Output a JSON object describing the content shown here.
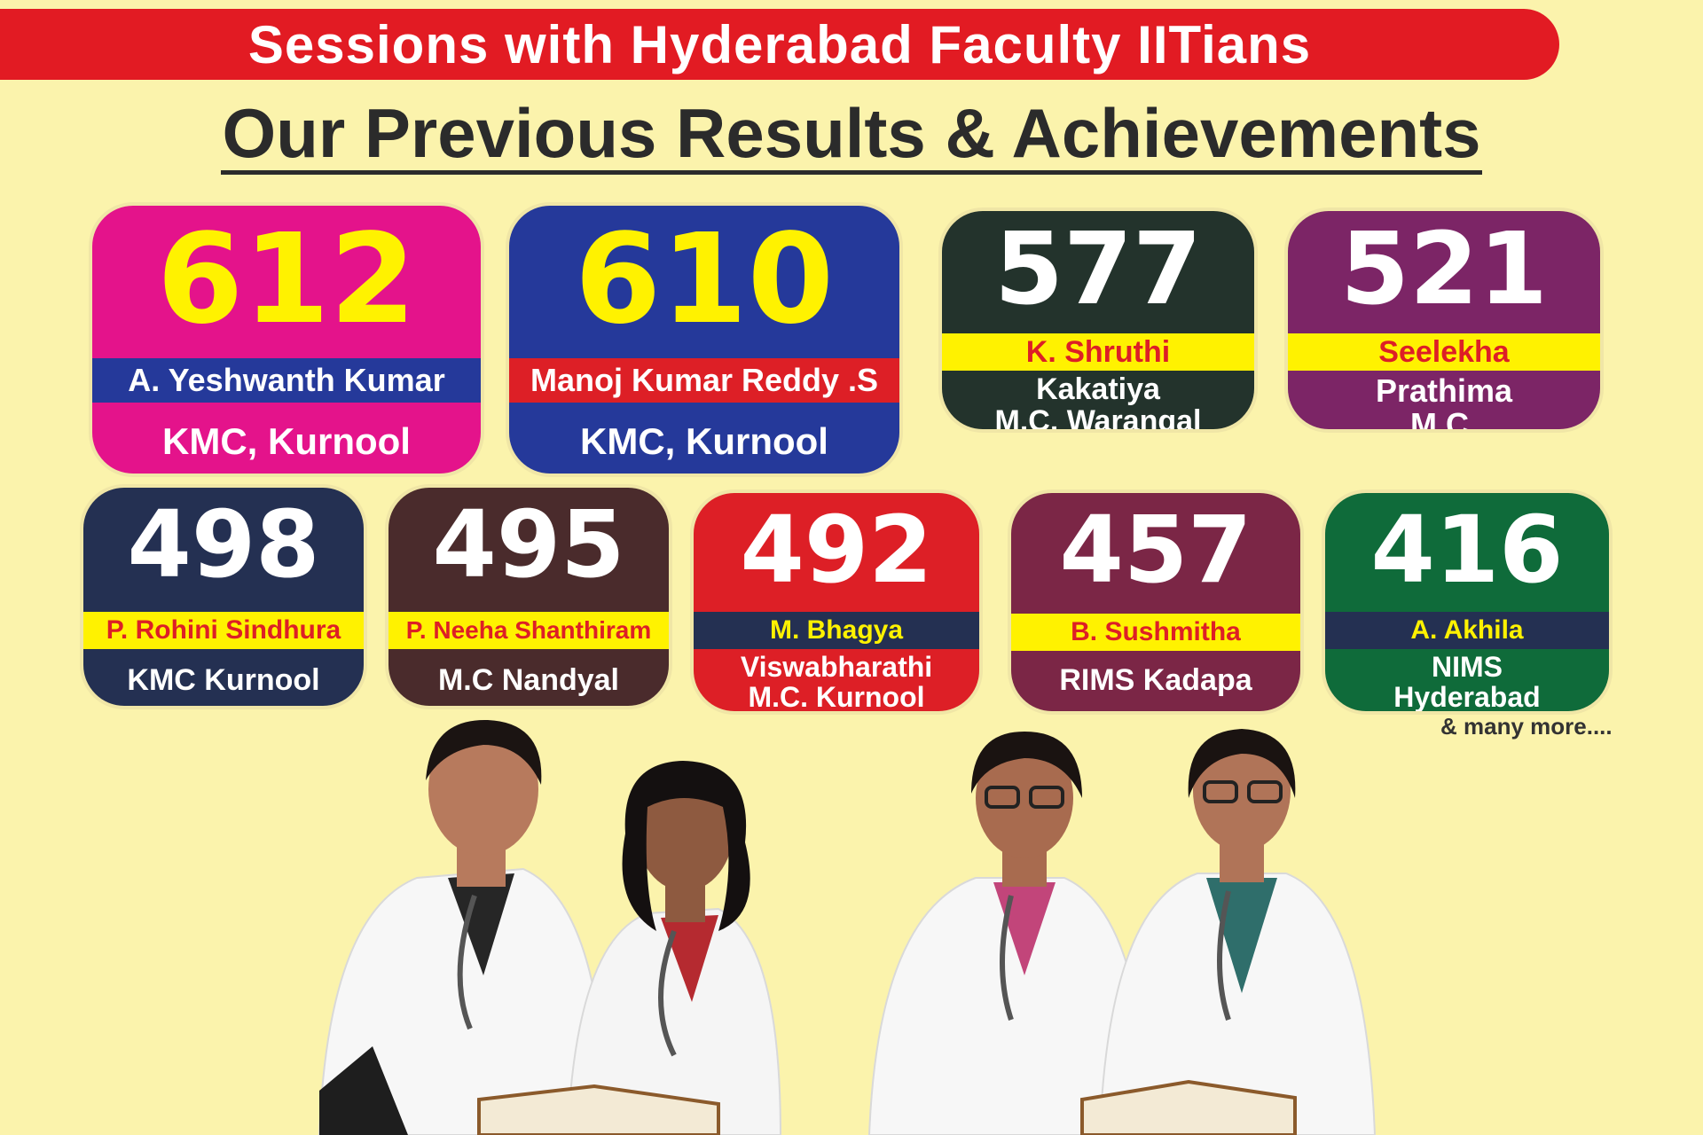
{
  "banner": "Sessions with Hyderabad Faculty IITians",
  "heading": "Our Previous Results & Achievements",
  "cards": [
    {
      "score": "612",
      "name": "A. Yeshwanth Kumar",
      "college": "KMC, Kurnool"
    },
    {
      "score": "610",
      "name": "Manoj Kumar Reddy .S",
      "college": "KMC, Kurnool"
    },
    {
      "score": "577",
      "name": "K. Shruthi",
      "college_line1": "Kakatiya",
      "college_line2": "M.C. Warangal"
    },
    {
      "score": "521",
      "name": "Seelekha",
      "college_line1": "Prathima",
      "college_line2": "M.C."
    },
    {
      "score": "498",
      "name": "P. Rohini Sindhura",
      "college": "KMC Kurnool"
    },
    {
      "score": "495",
      "name": "P. Neeha Shanthiram",
      "college": "M.C Nandyal"
    },
    {
      "score": "492",
      "name": "M. Bhagya",
      "college_line1": "Viswabharathi",
      "college_line2": "M.C. Kurnool"
    },
    {
      "score": "457",
      "name": "B. Sushmitha",
      "college": "RIMS Kadapa"
    },
    {
      "score": "416",
      "name": "A. Akhila",
      "college_line1": "NIMS",
      "college_line2": "Hyderabad"
    }
  ],
  "more": "& many more....",
  "colors": {
    "background": "#fbf3ac",
    "banner": "#e21b23",
    "magenta": "#e4138b",
    "blue": "#25399a",
    "dark_green": "#23332c",
    "purple": "#7c2566",
    "navy": "#243052",
    "brown": "#4a2b2c",
    "red": "#dd1f26",
    "maroon": "#7b2646",
    "green": "#0f6b3a",
    "yellow": "#fff200"
  }
}
